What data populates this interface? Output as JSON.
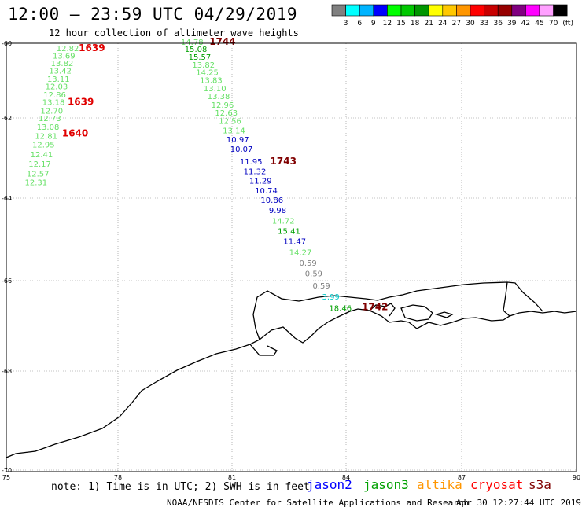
{
  "header": {
    "title": "12:00 – 23:59 UTC 04/29/2019",
    "subtitle": "12 hour collection of altimeter wave heights"
  },
  "colorbar": {
    "colors": [
      "#808080",
      "#00ffff",
      "#00b4ff",
      "#0000ff",
      "#00ff00",
      "#00c800",
      "#009600",
      "#ffff00",
      "#ffc800",
      "#ff9600",
      "#ff0000",
      "#c80000",
      "#960000",
      "#800080",
      "#ff00ff",
      "#ffa0ff",
      "#000000"
    ],
    "labels": [
      "3",
      "6",
      "9",
      "12",
      "15",
      "18",
      "21",
      "24",
      "27",
      "30",
      "33",
      "36",
      "39",
      "42",
      "45",
      "70"
    ],
    "unit": "(ft)"
  },
  "axes": {
    "x_ticks": [
      "75",
      "78",
      "81",
      "84",
      "87",
      "90"
    ],
    "y_ticks": [
      "-60",
      "-62",
      "-64",
      "-66",
      "-68",
      "-70"
    ]
  },
  "map_data": {
    "lon_range": [
      75,
      90
    ],
    "lat_range": [
      -60,
      -70
    ],
    "tracks": [
      {
        "color": "#66e066",
        "points": [
          {
            "lon": 76.65,
            "lat": -60.13,
            "v": "12.82"
          },
          {
            "lon": 76.55,
            "lat": -60.33,
            "v": "13.69"
          },
          {
            "lon": 76.5,
            "lat": -60.53,
            "v": "13.82"
          },
          {
            "lon": 76.45,
            "lat": -60.73,
            "v": "13.42"
          },
          {
            "lon": 76.4,
            "lat": -60.95,
            "v": "13.11"
          },
          {
            "lon": 76.35,
            "lat": -61.15,
            "v": "12.03"
          },
          {
            "lon": 76.3,
            "lat": -61.37,
            "v": "12.86"
          },
          {
            "lon": 76.27,
            "lat": -61.57,
            "v": "13.18"
          },
          {
            "lon": 76.22,
            "lat": -61.8,
            "v": "12.70"
          },
          {
            "lon": 76.17,
            "lat": -62.0,
            "v": "12.73"
          },
          {
            "lon": 76.12,
            "lat": -62.22,
            "v": "13.08"
          },
          {
            "lon": 76.07,
            "lat": -62.44,
            "v": "12.81"
          },
          {
            "lon": 76.0,
            "lat": -62.66,
            "v": "12.95"
          },
          {
            "lon": 75.95,
            "lat": -62.9,
            "v": "12.41"
          },
          {
            "lon": 75.9,
            "lat": -63.14,
            "v": "12.17"
          },
          {
            "lon": 75.85,
            "lat": -63.38,
            "v": "12.57"
          },
          {
            "lon": 75.8,
            "lat": -63.6,
            "v": "12.31"
          }
        ]
      },
      {
        "color": "mixed",
        "points": [
          {
            "lon": 79.95,
            "lat": -59.96,
            "v": "14.78",
            "c": "#66e066"
          },
          {
            "lon": 80.05,
            "lat": -60.15,
            "v": "15.08",
            "c": "#00a000"
          },
          {
            "lon": 80.15,
            "lat": -60.36,
            "v": "15.57",
            "c": "#00a000"
          },
          {
            "lon": 80.25,
            "lat": -60.57,
            "v": "13.82",
            "c": "#66e066"
          },
          {
            "lon": 80.35,
            "lat": -60.77,
            "v": "14.25",
            "c": "#66e066"
          },
          {
            "lon": 80.45,
            "lat": -60.98,
            "v": "13.83",
            "c": "#66e066"
          },
          {
            "lon": 80.55,
            "lat": -61.2,
            "v": "13.10",
            "c": "#66e066"
          },
          {
            "lon": 80.65,
            "lat": -61.41,
            "v": "13.38",
            "c": "#66e066"
          },
          {
            "lon": 80.75,
            "lat": -61.64,
            "v": "12.96",
            "c": "#66e066"
          },
          {
            "lon": 80.85,
            "lat": -61.85,
            "v": "12.63",
            "c": "#66e066"
          },
          {
            "lon": 80.95,
            "lat": -62.07,
            "v": "12.56",
            "c": "#66e066"
          },
          {
            "lon": 81.05,
            "lat": -62.3,
            "v": "13.14",
            "c": "#66e066"
          },
          {
            "lon": 81.15,
            "lat": -62.53,
            "v": "10.97",
            "c": "#0000c0"
          },
          {
            "lon": 81.25,
            "lat": -62.76,
            "v": "10.07",
            "c": "#0000c0"
          },
          {
            "lon": 81.5,
            "lat": -63.08,
            "v": "11.95",
            "c": "#0000c0"
          },
          {
            "lon": 81.6,
            "lat": -63.32,
            "v": "11.32",
            "c": "#0000c0"
          },
          {
            "lon": 81.75,
            "lat": -63.56,
            "v": "11.29",
            "c": "#0000c0"
          },
          {
            "lon": 81.9,
            "lat": -63.8,
            "v": "10.74",
            "c": "#0000c0"
          },
          {
            "lon": 82.05,
            "lat": -64.04,
            "v": "10.86",
            "c": "#0000c0"
          },
          {
            "lon": 82.2,
            "lat": -64.29,
            "v": "9.98",
            "c": "#0000c0"
          },
          {
            "lon": 82.35,
            "lat": -64.54,
            "v": "14.72",
            "c": "#66e066"
          },
          {
            "lon": 82.5,
            "lat": -64.79,
            "v": "15.41",
            "c": "#00a000"
          },
          {
            "lon": 82.65,
            "lat": -65.04,
            "v": "11.47",
            "c": "#0000c0"
          },
          {
            "lon": 82.8,
            "lat": -65.3,
            "v": "14.27",
            "c": "#66e066"
          },
          {
            "lon": 83.0,
            "lat": -65.56,
            "v": "0.59",
            "c": "#808080"
          },
          {
            "lon": 83.15,
            "lat": -65.82,
            "v": "0.59",
            "c": "#808080"
          },
          {
            "lon": 83.35,
            "lat": -66.1,
            "v": "0.59",
            "c": "#808080"
          },
          {
            "lon": 83.6,
            "lat": -66.35,
            "v": "3.99",
            "c": "#00c8c8"
          },
          {
            "lon": 83.85,
            "lat": -66.6,
            "v": "18.46",
            "c": "#00a000"
          }
        ]
      }
    ],
    "times": [
      {
        "lon": 77.3,
        "lat": -60.13,
        "v": "1639",
        "c": "#e00000"
      },
      {
        "lon": 77.0,
        "lat": -61.57,
        "v": "1639",
        "c": "#e00000"
      },
      {
        "lon": 76.85,
        "lat": -62.38,
        "v": "1640",
        "c": "#e00000"
      },
      {
        "lon": 80.75,
        "lat": -59.96,
        "v": "1744",
        "c": "#800000"
      },
      {
        "lon": 82.35,
        "lat": -63.08,
        "v": "1743",
        "c": "#800000"
      },
      {
        "lon": 84.75,
        "lat": -66.58,
        "v": "1742",
        "c": "#800000"
      }
    ]
  },
  "footer": {
    "note": "note: 1) Time is in UTC; 2) SWH is in feet",
    "satellites": [
      {
        "name": "jason2",
        "color": "#0000ff"
      },
      {
        "name": "jason3",
        "color": "#00a000"
      },
      {
        "name": "altika",
        "color": "#ff9600"
      },
      {
        "name": "cryosat",
        "color": "#ff0000"
      },
      {
        "name": "s3a",
        "color": "#800000"
      }
    ],
    "credit": "NOAA/NESDIS Center for Satellite Applications and Research",
    "timestamp": "Apr 30 12:27:44 UTC 2019"
  }
}
